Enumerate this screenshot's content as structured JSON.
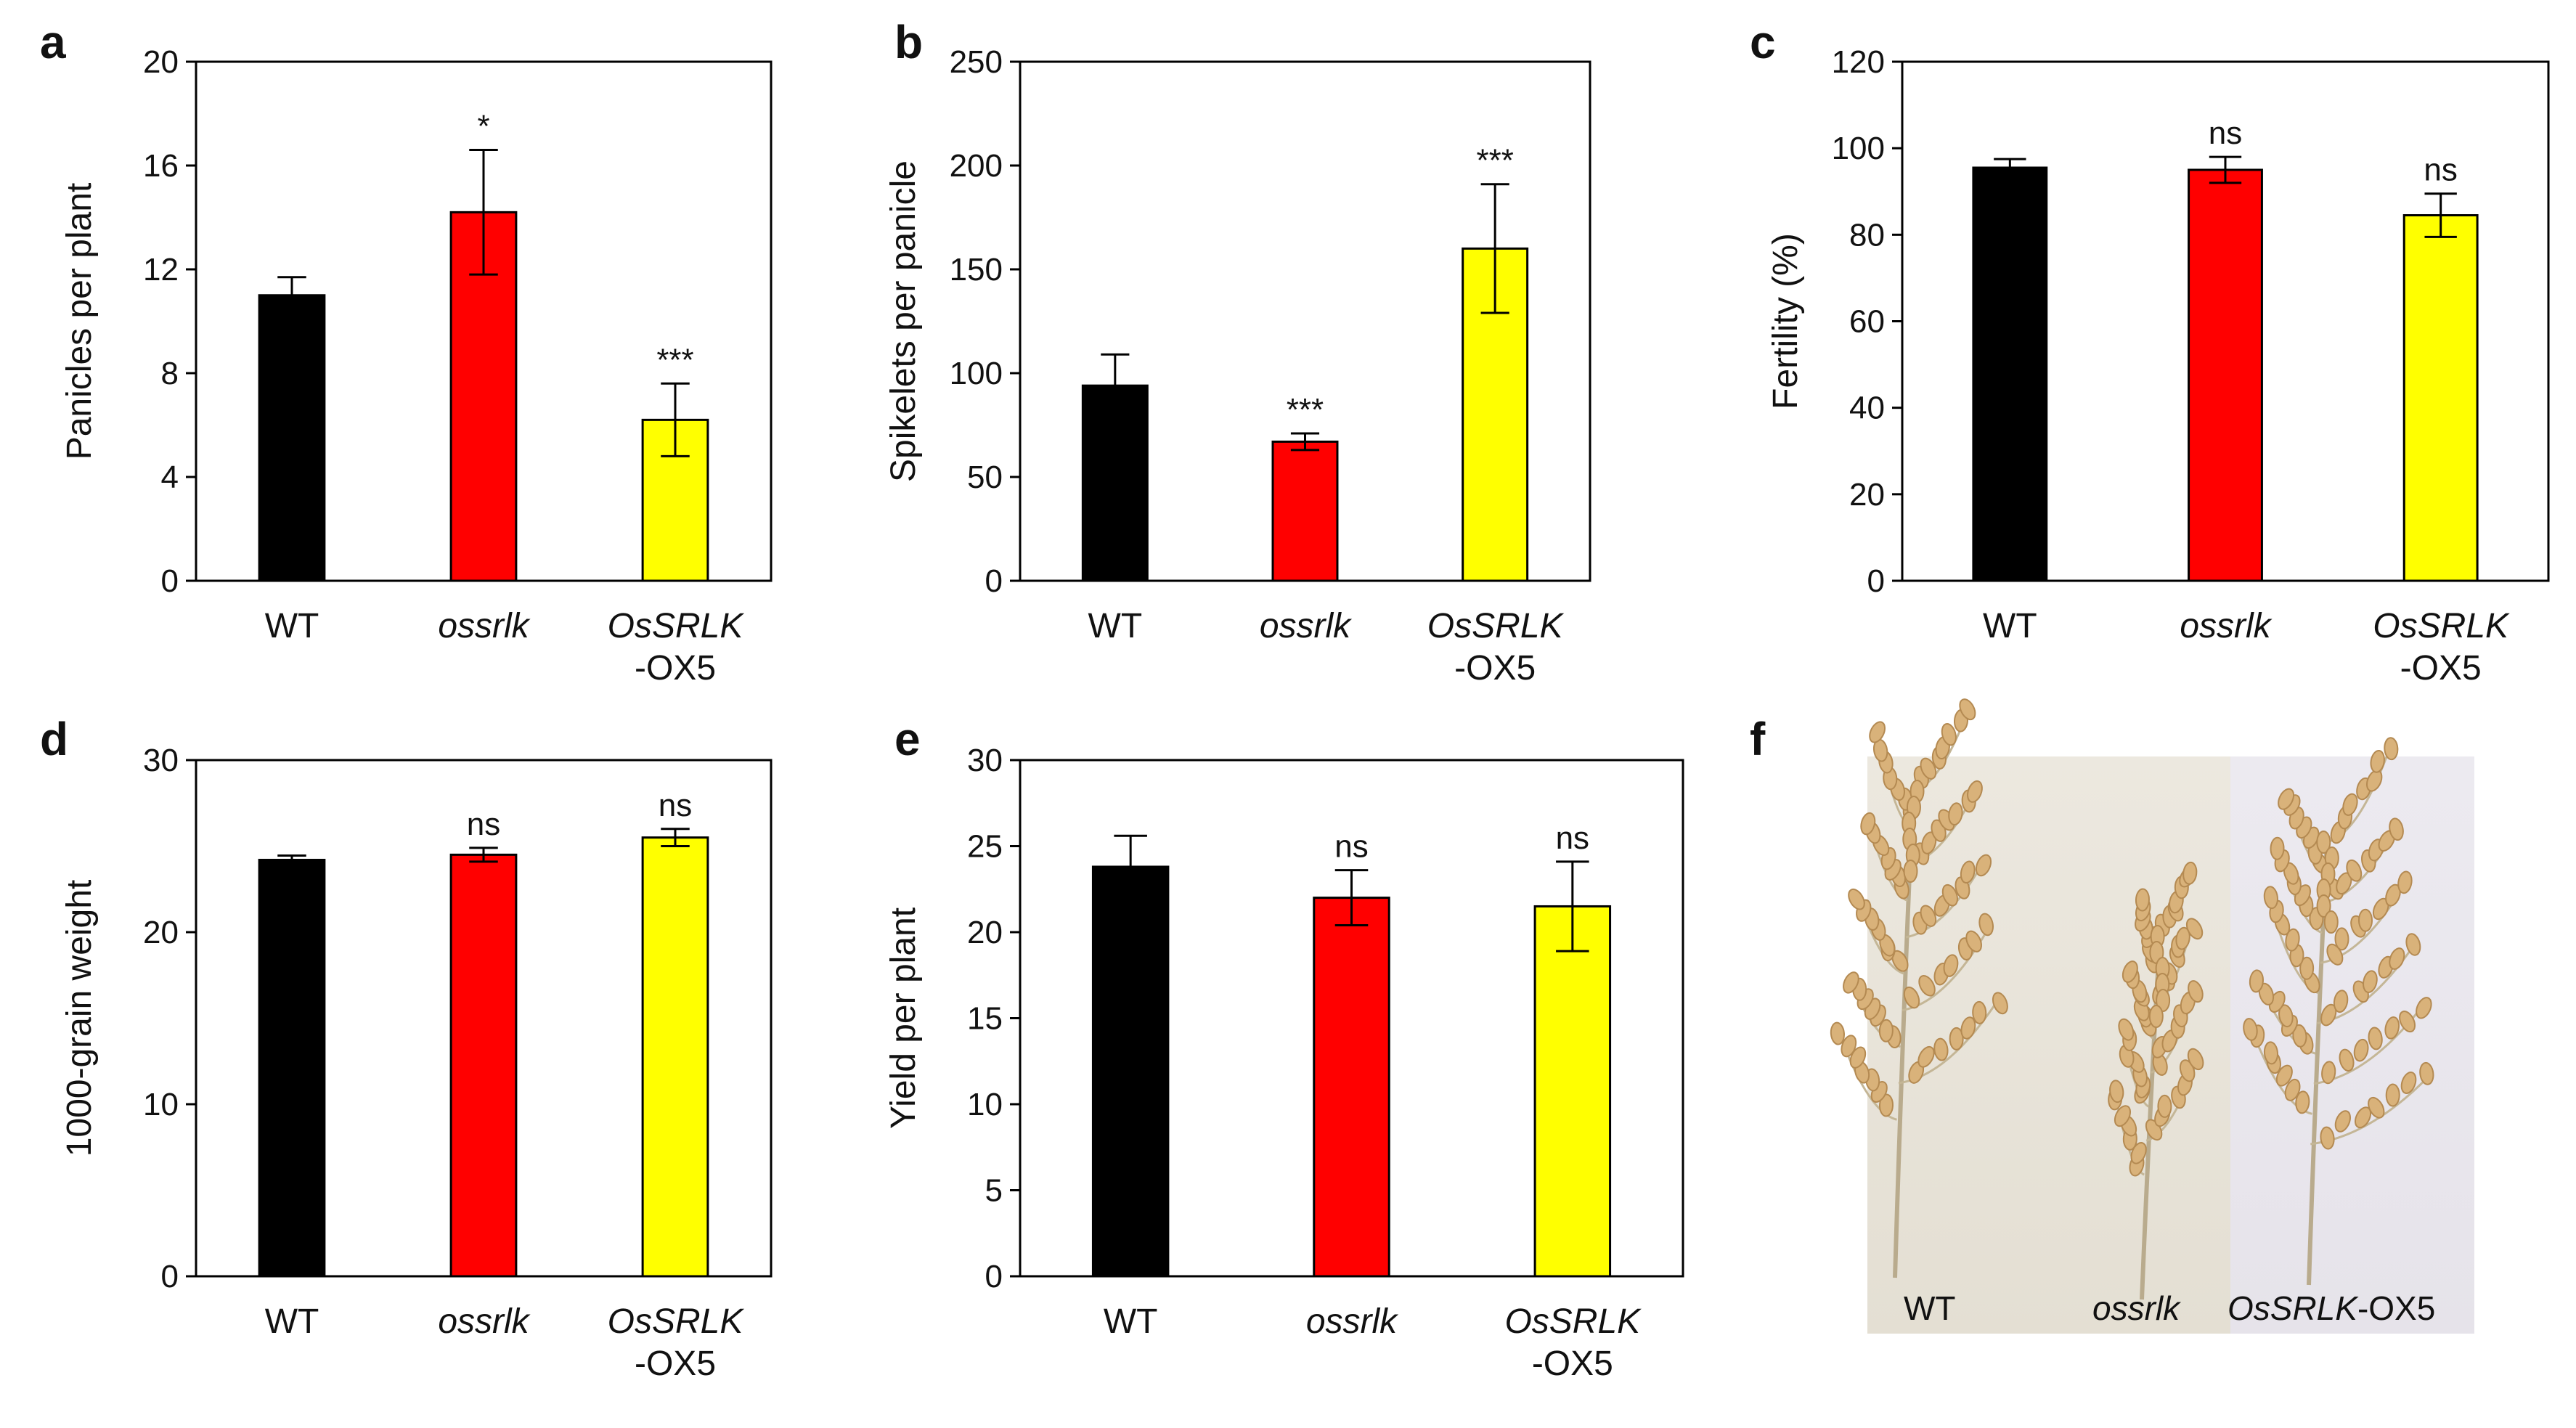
{
  "figure": {
    "panels": [
      {
        "letter": "a",
        "chart_index": 0
      },
      {
        "letter": "b",
        "chart_index": 1
      },
      {
        "letter": "c",
        "chart_index": 2
      },
      {
        "letter": "d",
        "chart_index": 3
      },
      {
        "letter": "e",
        "chart_index": 4
      },
      {
        "letter": "f",
        "photo": true
      }
    ],
    "photo": {
      "labels": [
        {
          "text": "WT",
          "italic": ""
        },
        {
          "text": "ossrlk",
          "italic": "ossrlk"
        },
        {
          "text": "OsSRLK-OX5",
          "italic": "OsSRLK",
          "rest": "-OX5"
        }
      ]
    }
  },
  "colors": {
    "WT": "#000000",
    "ossrlk": "#ff0000",
    "OsSRLK-OX5": "#ffff00",
    "axis": "#000000"
  },
  "chart_data": [
    {
      "type": "bar",
      "panel": "a",
      "ylabel": "Panicles per plant",
      "ylim": [
        0,
        20
      ],
      "yticks": [
        0,
        4,
        8,
        12,
        16,
        20
      ],
      "categories": [
        {
          "line1": "WT",
          "line2": "",
          "italic": false
        },
        {
          "line1": "ossrlk",
          "line2": "",
          "italic": true
        },
        {
          "line1": "OsSRLK",
          "line2": "-OX5",
          "italic": true
        }
      ],
      "values": [
        11.0,
        14.2,
        6.2
      ],
      "errors": [
        0.7,
        2.4,
        1.4
      ],
      "significance": [
        "",
        "*",
        "***"
      ]
    },
    {
      "type": "bar",
      "panel": "b",
      "ylabel": "Spikelets per panicle",
      "ylim": [
        0,
        250
      ],
      "yticks": [
        0,
        50,
        100,
        150,
        200,
        250
      ],
      "categories": [
        {
          "line1": "WT",
          "line2": "",
          "italic": false
        },
        {
          "line1": "ossrlk",
          "line2": "",
          "italic": true
        },
        {
          "line1": "OsSRLK",
          "line2": "-OX5",
          "italic": true
        }
      ],
      "values": [
        94,
        67,
        160
      ],
      "errors": [
        15,
        4,
        31
      ],
      "significance": [
        "",
        "***",
        "***"
      ]
    },
    {
      "type": "bar",
      "panel": "c",
      "ylabel": "Fertility (%)",
      "ylim": [
        0,
        120
      ],
      "yticks": [
        0,
        20,
        40,
        60,
        80,
        100,
        120
      ],
      "categories": [
        {
          "line1": "WT",
          "line2": "",
          "italic": false
        },
        {
          "line1": "ossrlk",
          "line2": "",
          "italic": true
        },
        {
          "line1": "OsSRLK",
          "line2": "-OX5",
          "italic": true
        }
      ],
      "values": [
        95.5,
        95.0,
        84.5
      ],
      "errors": [
        2.0,
        3.0,
        5.0
      ],
      "significance": [
        "",
        "ns",
        "ns"
      ]
    },
    {
      "type": "bar",
      "panel": "d",
      "ylabel": "1000-grain weight",
      "ylim": [
        0,
        30
      ],
      "yticks": [
        0,
        10,
        20,
        30
      ],
      "categories": [
        {
          "line1": "WT",
          "line2": "",
          "italic": false
        },
        {
          "line1": "ossrlk",
          "line2": "",
          "italic": true
        },
        {
          "line1": "OsSRLK",
          "line2": "-OX5",
          "italic": true
        }
      ],
      "values": [
        24.2,
        24.5,
        25.5
      ],
      "errors": [
        0.25,
        0.4,
        0.5
      ],
      "significance": [
        "",
        "ns",
        "ns"
      ]
    },
    {
      "type": "bar",
      "panel": "e",
      "ylabel": "Yield per plant",
      "ylim": [
        0,
        30
      ],
      "yticks": [
        0,
        5,
        10,
        15,
        20,
        25,
        30
      ],
      "categories": [
        {
          "line1": "WT",
          "line2": "",
          "italic": false
        },
        {
          "line1": "ossrlk",
          "line2": "",
          "italic": true
        },
        {
          "line1": "OsSRLK",
          "line2": "-OX5",
          "italic": true
        }
      ],
      "values": [
        23.8,
        22.0,
        21.5
      ],
      "errors": [
        1.8,
        1.6,
        2.6
      ],
      "significance": [
        "",
        "ns",
        "ns"
      ]
    }
  ]
}
